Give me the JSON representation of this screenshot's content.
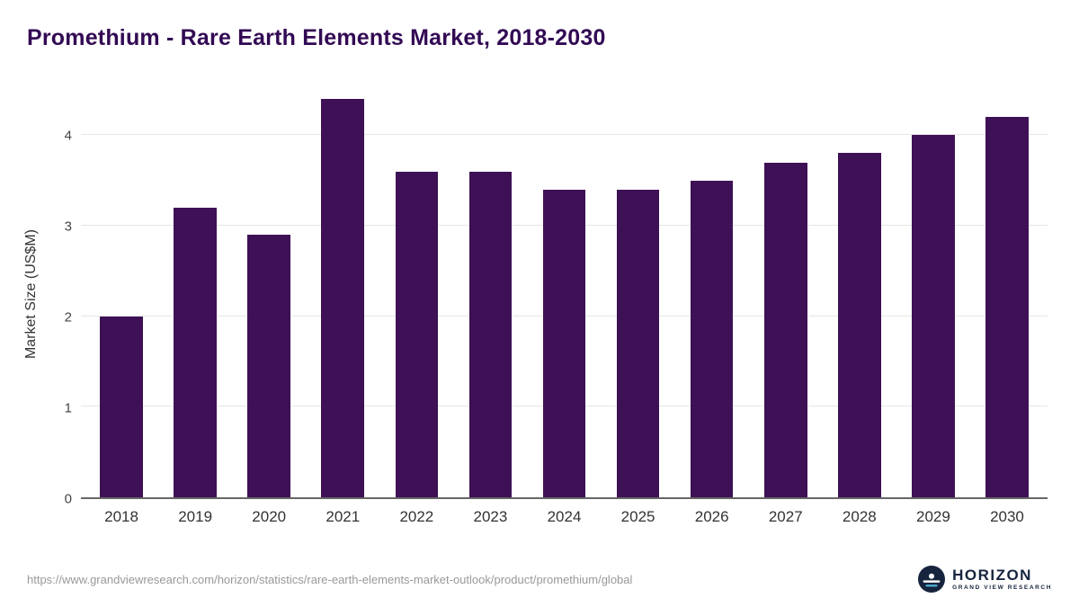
{
  "title": "Promethium - Rare Earth Elements Market, 2018-2030",
  "source_url": "https://www.grandviewresearch.com/horizon/statistics/rare-earth-elements-market-outlook/product/promethium/global",
  "logo": {
    "name": "HORIZON",
    "subtitle": "GRAND VIEW RESEARCH"
  },
  "colors": {
    "title": "#320a54",
    "bar": "#3e1156",
    "gridline": "#e6e6e6",
    "axis": "#666666"
  },
  "chart_data": {
    "type": "bar",
    "title": "Promethium - Rare Earth Elements Market, 2018-2030",
    "categories": [
      "2018",
      "2019",
      "2020",
      "2021",
      "2022",
      "2023",
      "2024",
      "2025",
      "2026",
      "2027",
      "2028",
      "2029",
      "2030"
    ],
    "values": [
      2.0,
      3.2,
      2.9,
      4.4,
      3.6,
      3.6,
      3.4,
      3.4,
      3.5,
      3.7,
      3.8,
      4.0,
      4.2
    ],
    "xlabel": "",
    "ylabel": "Market Size (US$M)",
    "ylim": [
      0,
      4.5
    ],
    "yticks": [
      0,
      1,
      2,
      3,
      4
    ],
    "grid": true,
    "legend": false
  }
}
